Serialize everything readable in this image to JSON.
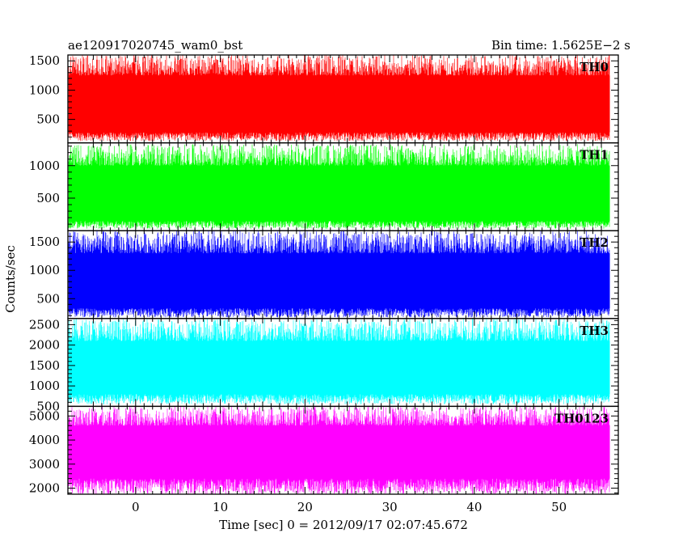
{
  "chart_data": {
    "type": "line",
    "title_left": "ae120917020745_wam0_bst",
    "title_right": "Bin time: 1.5625E−2 s",
    "xlabel": "Time [sec] 0 = 2012/09/17 02:07:45.672",
    "ylabel": "Counts/sec",
    "xlim": [
      -8,
      57
    ],
    "xticks": [
      "0",
      "10",
      "20",
      "30",
      "40",
      "50"
    ],
    "data_x_range": [
      -7.9,
      56.0
    ],
    "panels": [
      {
        "name": "TH0",
        "color": "#ff0000",
        "ylim": [
          100,
          1600
        ],
        "yticks": [
          "500",
          "1000",
          "1500"
        ],
        "band": [
          130,
          1600
        ],
        "core": [
          280,
          1250
        ]
      },
      {
        "name": "TH1",
        "color": "#00ff00",
        "ylim": [
          0,
          1350
        ],
        "yticks": [
          "500",
          "1000"
        ],
        "band": [
          30,
          1330
        ],
        "core": [
          150,
          1000
        ]
      },
      {
        "name": "TH2",
        "color": "#0000ff",
        "ylim": [
          150,
          1700
        ],
        "yticks": [
          "500",
          "1000",
          "1500"
        ],
        "band": [
          170,
          1700
        ],
        "core": [
          330,
          1300
        ]
      },
      {
        "name": "TH3",
        "color": "#00ffff",
        "ylim": [
          500,
          2650
        ],
        "yticks": [
          "500",
          "1000",
          "1500",
          "2000",
          "2500"
        ],
        "band": [
          550,
          2650
        ],
        "core": [
          800,
          2100
        ]
      },
      {
        "name": "TH0123",
        "color": "#ff00ff",
        "ylim": [
          1750,
          5400
        ],
        "yticks": [
          "2000",
          "3000",
          "4000",
          "5000"
        ],
        "band": [
          1750,
          5400
        ],
        "core": [
          2400,
          4600
        ]
      }
    ]
  }
}
